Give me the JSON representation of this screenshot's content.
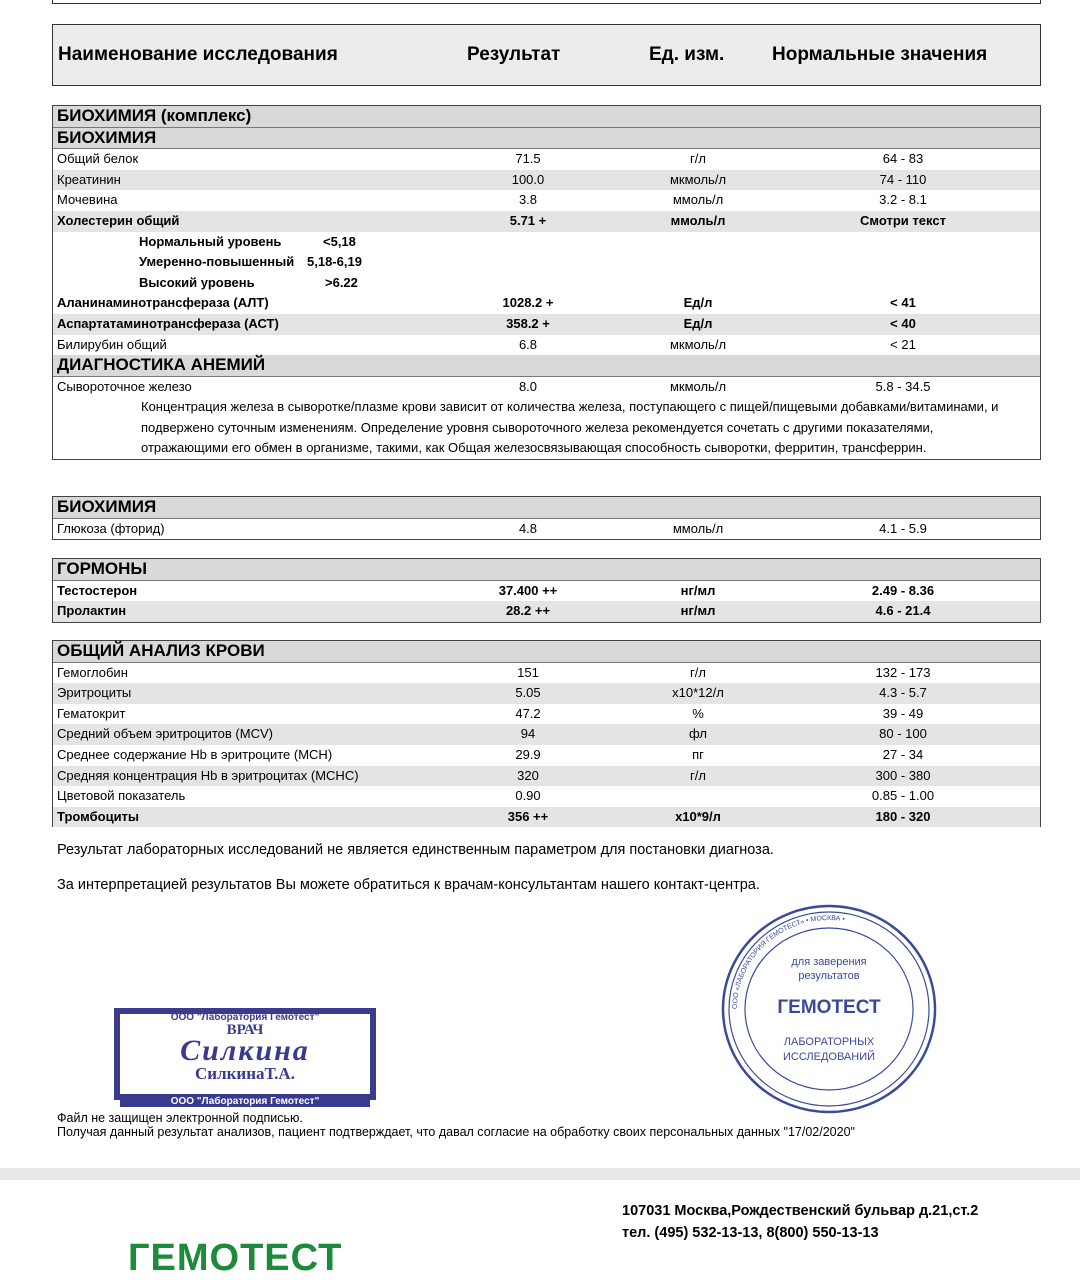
{
  "header": {
    "name": "Наименование исследования",
    "result": "Результат",
    "unit": "Ед. изм.",
    "norm": "Нормальные значения"
  },
  "box1": {
    "title": "БИОХИМИЯ (комплекс)",
    "section1": "БИОХИМИЯ",
    "rows1": [
      {
        "name": "Общий белок",
        "result": "71.5",
        "unit": "г/л",
        "norm": "64 - 83"
      },
      {
        "name": "Креатинин",
        "result": "100.0",
        "unit": "мкмоль/л",
        "norm": "74 - 110"
      },
      {
        "name": "Мочевина",
        "result": "3.8",
        "unit": "ммоль/л",
        "norm": "3.2 - 8.1"
      },
      {
        "name": "Холестерин общий",
        "result": "5.71 +",
        "unit": "ммоль/л",
        "norm": "Смотри текст"
      }
    ],
    "chol_levels": [
      {
        "label": "Нормальный уровень",
        "value": "<5,18"
      },
      {
        "label": "Умеренно-повышенный",
        "value": "5,18-6,19"
      },
      {
        "label": "Высокий уровень",
        "value": ">6.22"
      }
    ],
    "rows2": [
      {
        "name": "Аланинаминотрансфераза (АЛТ)",
        "result": "1028.2 +",
        "unit": "Ед/л",
        "norm": "< 41"
      },
      {
        "name": "Аспартатаминотрансфераза (АСТ)",
        "result": "358.2 +",
        "unit": "Ед/л",
        "norm": "< 40"
      },
      {
        "name": "Билирубин общий",
        "result": "6.8",
        "unit": "мкмоль/л",
        "norm": "< 21"
      }
    ],
    "section2": "ДИАГНОСТИКА АНЕМИЙ",
    "iron": {
      "name": "Сывороточное железо",
      "result": "8.0",
      "unit": "мкмоль/л",
      "norm": "5.8 - 34.5"
    },
    "iron_note": "Концентрация железа в сыворотке/плазме крови зависит от количества железа, поступающего с пищей/пищевыми добавками/витаминами, и подвержено суточным изменениям. Определение уровня сывороточного железа рекомендуется сочетать с другими показателями, отражающими его обмен в организме, такими, как Общая железосвязывающая способность сыворотки, ферритин, трансферрин."
  },
  "box2": {
    "title": "БИОХИМИЯ",
    "rows": [
      {
        "name": "Глюкоза (фторид)",
        "result": "4.8",
        "unit": "ммоль/л",
        "norm": "4.1 - 5.9"
      }
    ]
  },
  "box3": {
    "title": "ГОРМОНЫ",
    "rows": [
      {
        "name": "Тестостерон",
        "result": "37.400 ++",
        "unit": "нг/мл",
        "norm": "2.49 - 8.36"
      },
      {
        "name": "Пролактин",
        "result": "28.2 ++",
        "unit": "нг/мл",
        "norm": "4.6 - 21.4"
      }
    ]
  },
  "box4": {
    "title": "ОБЩИЙ АНАЛИЗ КРОВИ",
    "rows": [
      {
        "name": "Гемоглобин",
        "result": "151",
        "unit": "г/л",
        "norm": "132 - 173"
      },
      {
        "name": "Эритроциты",
        "result": "5.05",
        "unit": "x10*12/л",
        "norm": "4.3 - 5.7"
      },
      {
        "name": "Гематокрит",
        "result": "47.2",
        "unit": "%",
        "norm": "39 - 49"
      },
      {
        "name": "Средний объем эритроцитов (MCV)",
        "result": "94",
        "unit": "фл",
        "norm": "80 - 100"
      },
      {
        "name": "Среднее содержание Hb в эритроците (MCH)",
        "result": "29.9",
        "unit": "пг",
        "norm": "27 - 34"
      },
      {
        "name": "Средняя концентрация Hb в эритроцитах (MCHC)",
        "result": "320",
        "unit": "г/л",
        "norm": "300 - 380"
      },
      {
        "name": "Цветовой показатель",
        "result": "0.90",
        "unit": "",
        "norm": "0.85 - 1.00"
      },
      {
        "name": "Тромбоциты",
        "result": "356 ++",
        "unit": "x10*9/л",
        "norm": "180 - 320"
      }
    ]
  },
  "disclaimer1": "Результат лабораторных исследований не является единственным параметром для постановки диагноза.",
  "disclaimer2": "За интерпретацией результатов Вы можете обратиться к врачам-консультантам нашего контакт-центра.",
  "doctor_stamp": {
    "org": "ООО \"Лаборатория Гемотест\"",
    "title": "ВРАЧ",
    "signature": "Силкина",
    "name": "СилкинаТ.А.",
    "side": "СилкинаТ.А.",
    "color": "#3a3a8f"
  },
  "round_stamp": {
    "line1": "для заверения",
    "line2": "результатов",
    "brand": "ГЕМОТЕСТ",
    "line3": "ЛАБОРАТОРНЫХ",
    "line4": "ИССЛЕДОВАНИЙ",
    "ring": "ООО «ЛАБОРАТОРИЯ ГЕМОТЕСТ» • МОСКВА •",
    "color": "#3a4a9a"
  },
  "signature_note": "Файл не защищен электронной подписью.",
  "consent_note": "Получая данный результат анализов, пациент подтверждает, что давал согласие на обработку своих персональных данных \"17/02/2020\"",
  "footer": {
    "logo": "ГЕМОТЕСТ",
    "logo_color": "#1e8a3c",
    "address": "107031 Москва,Рождественский бульвар д.21,ст.2",
    "phone": "тел. (495) 532-13-13, 8(800) 550-13-13"
  }
}
